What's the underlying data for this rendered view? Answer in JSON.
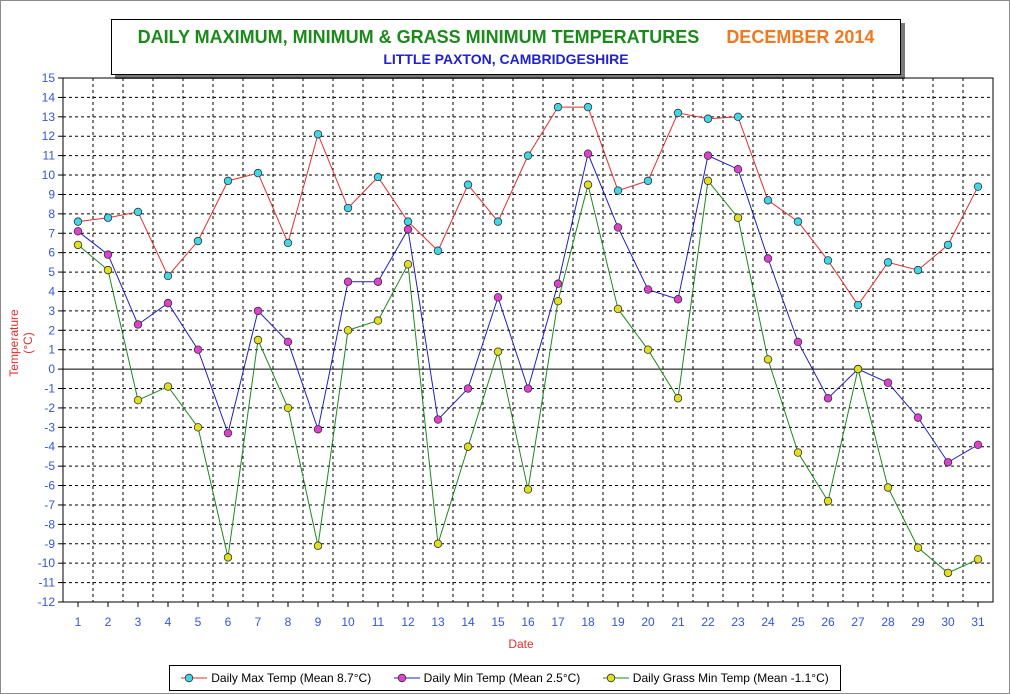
{
  "chart_data": {
    "type": "line",
    "title": "DAILY MAXIMUM, MINIMUM & GRASS MINIMUM TEMPERATURES",
    "title_month": "DECEMBER 2014",
    "subtitle": "LITTLE PAXTON, CAMBRIDGESHIRE",
    "xlabel": "Date",
    "ylabel": "Temperature (°C)",
    "ylim": [
      -12,
      15
    ],
    "xlim": [
      1,
      31
    ],
    "grid": true,
    "legend_position": "bottom",
    "x": [
      1,
      2,
      3,
      4,
      5,
      6,
      7,
      8,
      9,
      10,
      11,
      12,
      13,
      14,
      15,
      16,
      17,
      18,
      19,
      20,
      21,
      22,
      23,
      24,
      25,
      26,
      27,
      28,
      29,
      30,
      31
    ],
    "yticks": [
      15,
      14,
      13,
      12,
      11,
      10,
      9,
      8,
      7,
      6,
      5,
      4,
      3,
      2,
      1,
      0,
      -1,
      -2,
      -3,
      -4,
      -5,
      -6,
      -7,
      -8,
      -9,
      -10,
      -11,
      -12
    ],
    "colors": {
      "axis_text": "#3355dd",
      "grid": "#000000",
      "title_main": "#1b8a1b",
      "title_month": "#f07820",
      "subtitle": "#2222cc",
      "axis_label": "#e03030"
    },
    "series": [
      {
        "name": "Daily Max Temp (Mean 8.7°C)",
        "line_color": "#e03030",
        "marker_color": "#40d8e8",
        "values": [
          7.6,
          7.8,
          8.1,
          4.8,
          6.6,
          9.7,
          10.1,
          6.5,
          12.1,
          8.3,
          9.9,
          7.6,
          6.1,
          9.5,
          7.6,
          11.0,
          13.5,
          13.5,
          9.2,
          9.7,
          13.2,
          12.9,
          13.0,
          8.7,
          7.6,
          5.6,
          3.3,
          5.5,
          5.1,
          6.4,
          9.4
        ]
      },
      {
        "name": "Daily Min Temp (Mean 2.5°C)",
        "line_color": "#2020c0",
        "marker_color": "#e040d0",
        "values": [
          7.1,
          5.9,
          2.3,
          3.4,
          1.0,
          -3.3,
          3.0,
          1.4,
          -3.1,
          4.5,
          4.5,
          7.2,
          -2.6,
          -1.0,
          3.7,
          -1.0,
          4.4,
          11.1,
          7.3,
          4.1,
          3.6,
          11.0,
          10.3,
          5.7,
          1.4,
          -1.5,
          0.0,
          -0.7,
          -2.5,
          -4.8,
          -3.9
        ]
      },
      {
        "name": "Daily Grass Min Temp (Mean -1.1°C)",
        "line_color": "#1b8a1b",
        "marker_color": "#e0e020",
        "values": [
          6.4,
          5.1,
          -1.6,
          -0.9,
          -3.0,
          -9.7,
          1.5,
          -2.0,
          -9.1,
          2.0,
          2.5,
          5.4,
          -9.0,
          -4.0,
          0.9,
          -6.2,
          3.5,
          9.5,
          3.1,
          1.0,
          -1.5,
          9.7,
          7.8,
          0.5,
          -4.3,
          -6.8,
          0.0,
          -6.1,
          -9.2,
          -10.5,
          -9.8
        ]
      }
    ]
  }
}
